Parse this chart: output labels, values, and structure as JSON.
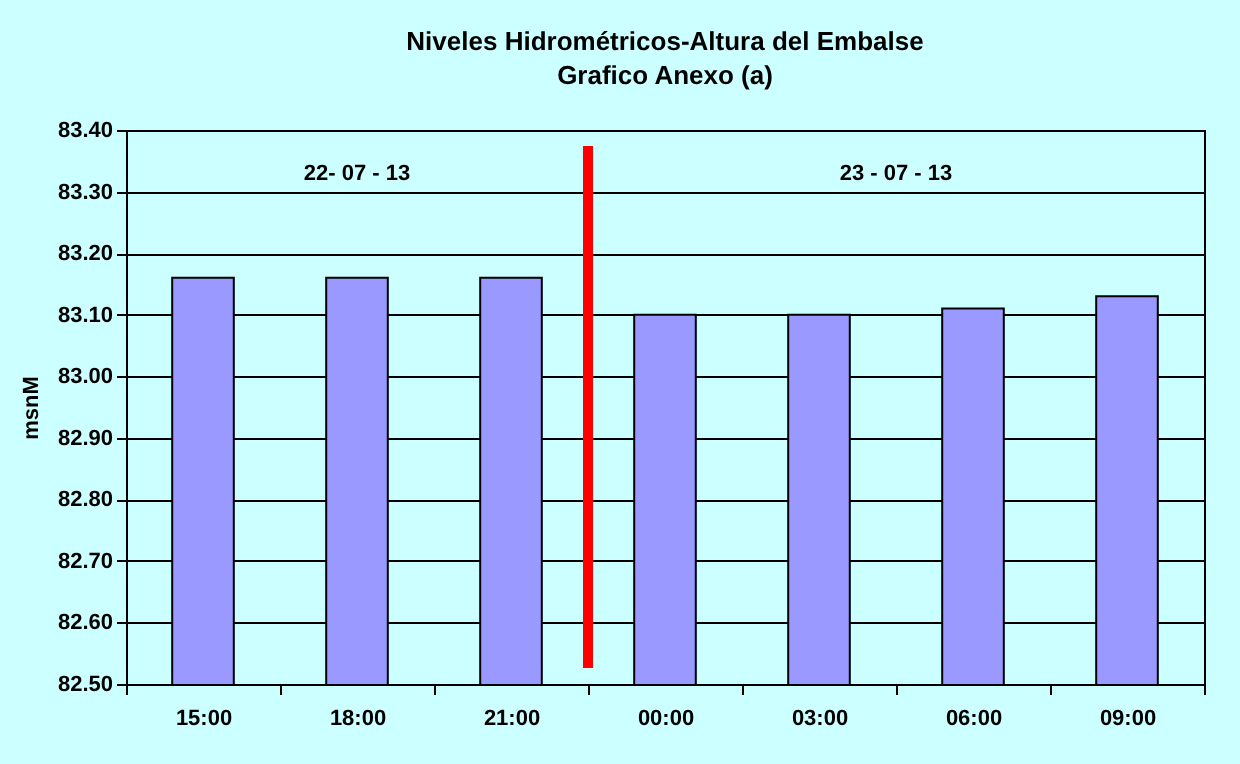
{
  "chart_data": {
    "type": "bar",
    "title": "Niveles Hidrométricos-Altura del Embalse",
    "subtitle": "Grafico Anexo (a)",
    "ylabel": "msnM",
    "categories": [
      "15:00",
      "18:00",
      "21:00",
      "00:00",
      "03:00",
      "06:00",
      "09:00"
    ],
    "values": [
      83.16,
      83.16,
      83.16,
      83.1,
      83.1,
      83.11,
      83.13
    ],
    "color": "#9999ff",
    "ylim": [
      82.5,
      83.4
    ],
    "yticks": [
      {
        "value": 82.5,
        "label": "82.50"
      },
      {
        "value": 82.6,
        "label": "82.60"
      },
      {
        "value": 82.7,
        "label": "82.70"
      },
      {
        "value": 82.8,
        "label": "82.80"
      },
      {
        "value": 82.9,
        "label": "82.90"
      },
      {
        "value": 83.0,
        "label": "83.00"
      },
      {
        "value": 83.1,
        "label": "83.10"
      },
      {
        "value": 83.2,
        "label": "83.20"
      },
      {
        "value": 83.3,
        "label": "83.30"
      },
      {
        "value": 83.4,
        "label": "83.40"
      }
    ],
    "grid": "y",
    "ref_lines": [
      {
        "axis": "x",
        "value": "21:00",
        "color": "#ff0000"
      }
    ],
    "annotations": [
      "22- 07 - 13",
      "23 - 07 - 13"
    ]
  }
}
